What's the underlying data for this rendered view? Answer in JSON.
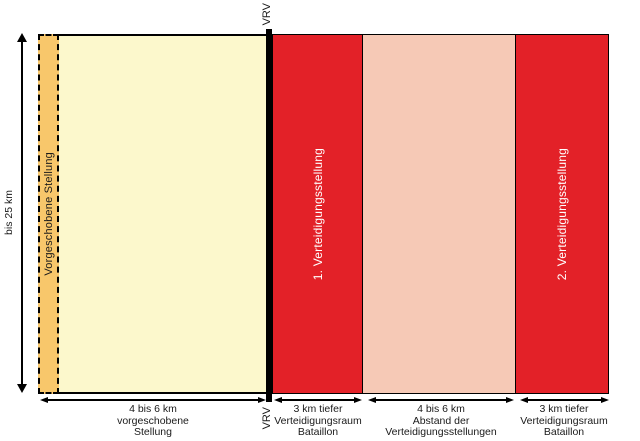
{
  "diagram": {
    "left_scale_label": "bis 25 km",
    "vrv": {
      "top_label": "VRV",
      "bottom_label": "VRV"
    },
    "zones": [
      {
        "id": "vorgeschobene-stellung",
        "label": "Vorgeschobene Stellung",
        "color": "#F8C76B",
        "text_color": "#1a1a1a"
      },
      {
        "id": "vorfeld",
        "label": "",
        "color": "#FCF8CC",
        "text_color": "#1a1a1a"
      },
      {
        "id": "verteidigungsstellung-1",
        "label": "1. Verteidigungsstellung",
        "color": "#E32128",
        "text_color": "#FFFFFF"
      },
      {
        "id": "abstand-zone",
        "label": "",
        "color": "#F6C9B6",
        "text_color": "#1a1a1a"
      },
      {
        "id": "verteidigungsstellung-2",
        "label": "2. Verteidigungsstellung",
        "color": "#E32128",
        "text_color": "#FFFFFF"
      }
    ],
    "measurements": [
      {
        "lines": [
          "4 bis 6 km",
          "vorgeschobene",
          "Stellung"
        ]
      },
      {
        "lines": [
          "3 km tiefer",
          "Verteidigungsraum",
          "Bataillon"
        ]
      },
      {
        "lines": [
          "4 bis 6 km",
          "Abstand der",
          "Verteidigungsstellungen"
        ]
      },
      {
        "lines": [
          "3 km tiefer",
          "Verteidigungsraum",
          "Bataillon"
        ]
      }
    ]
  }
}
